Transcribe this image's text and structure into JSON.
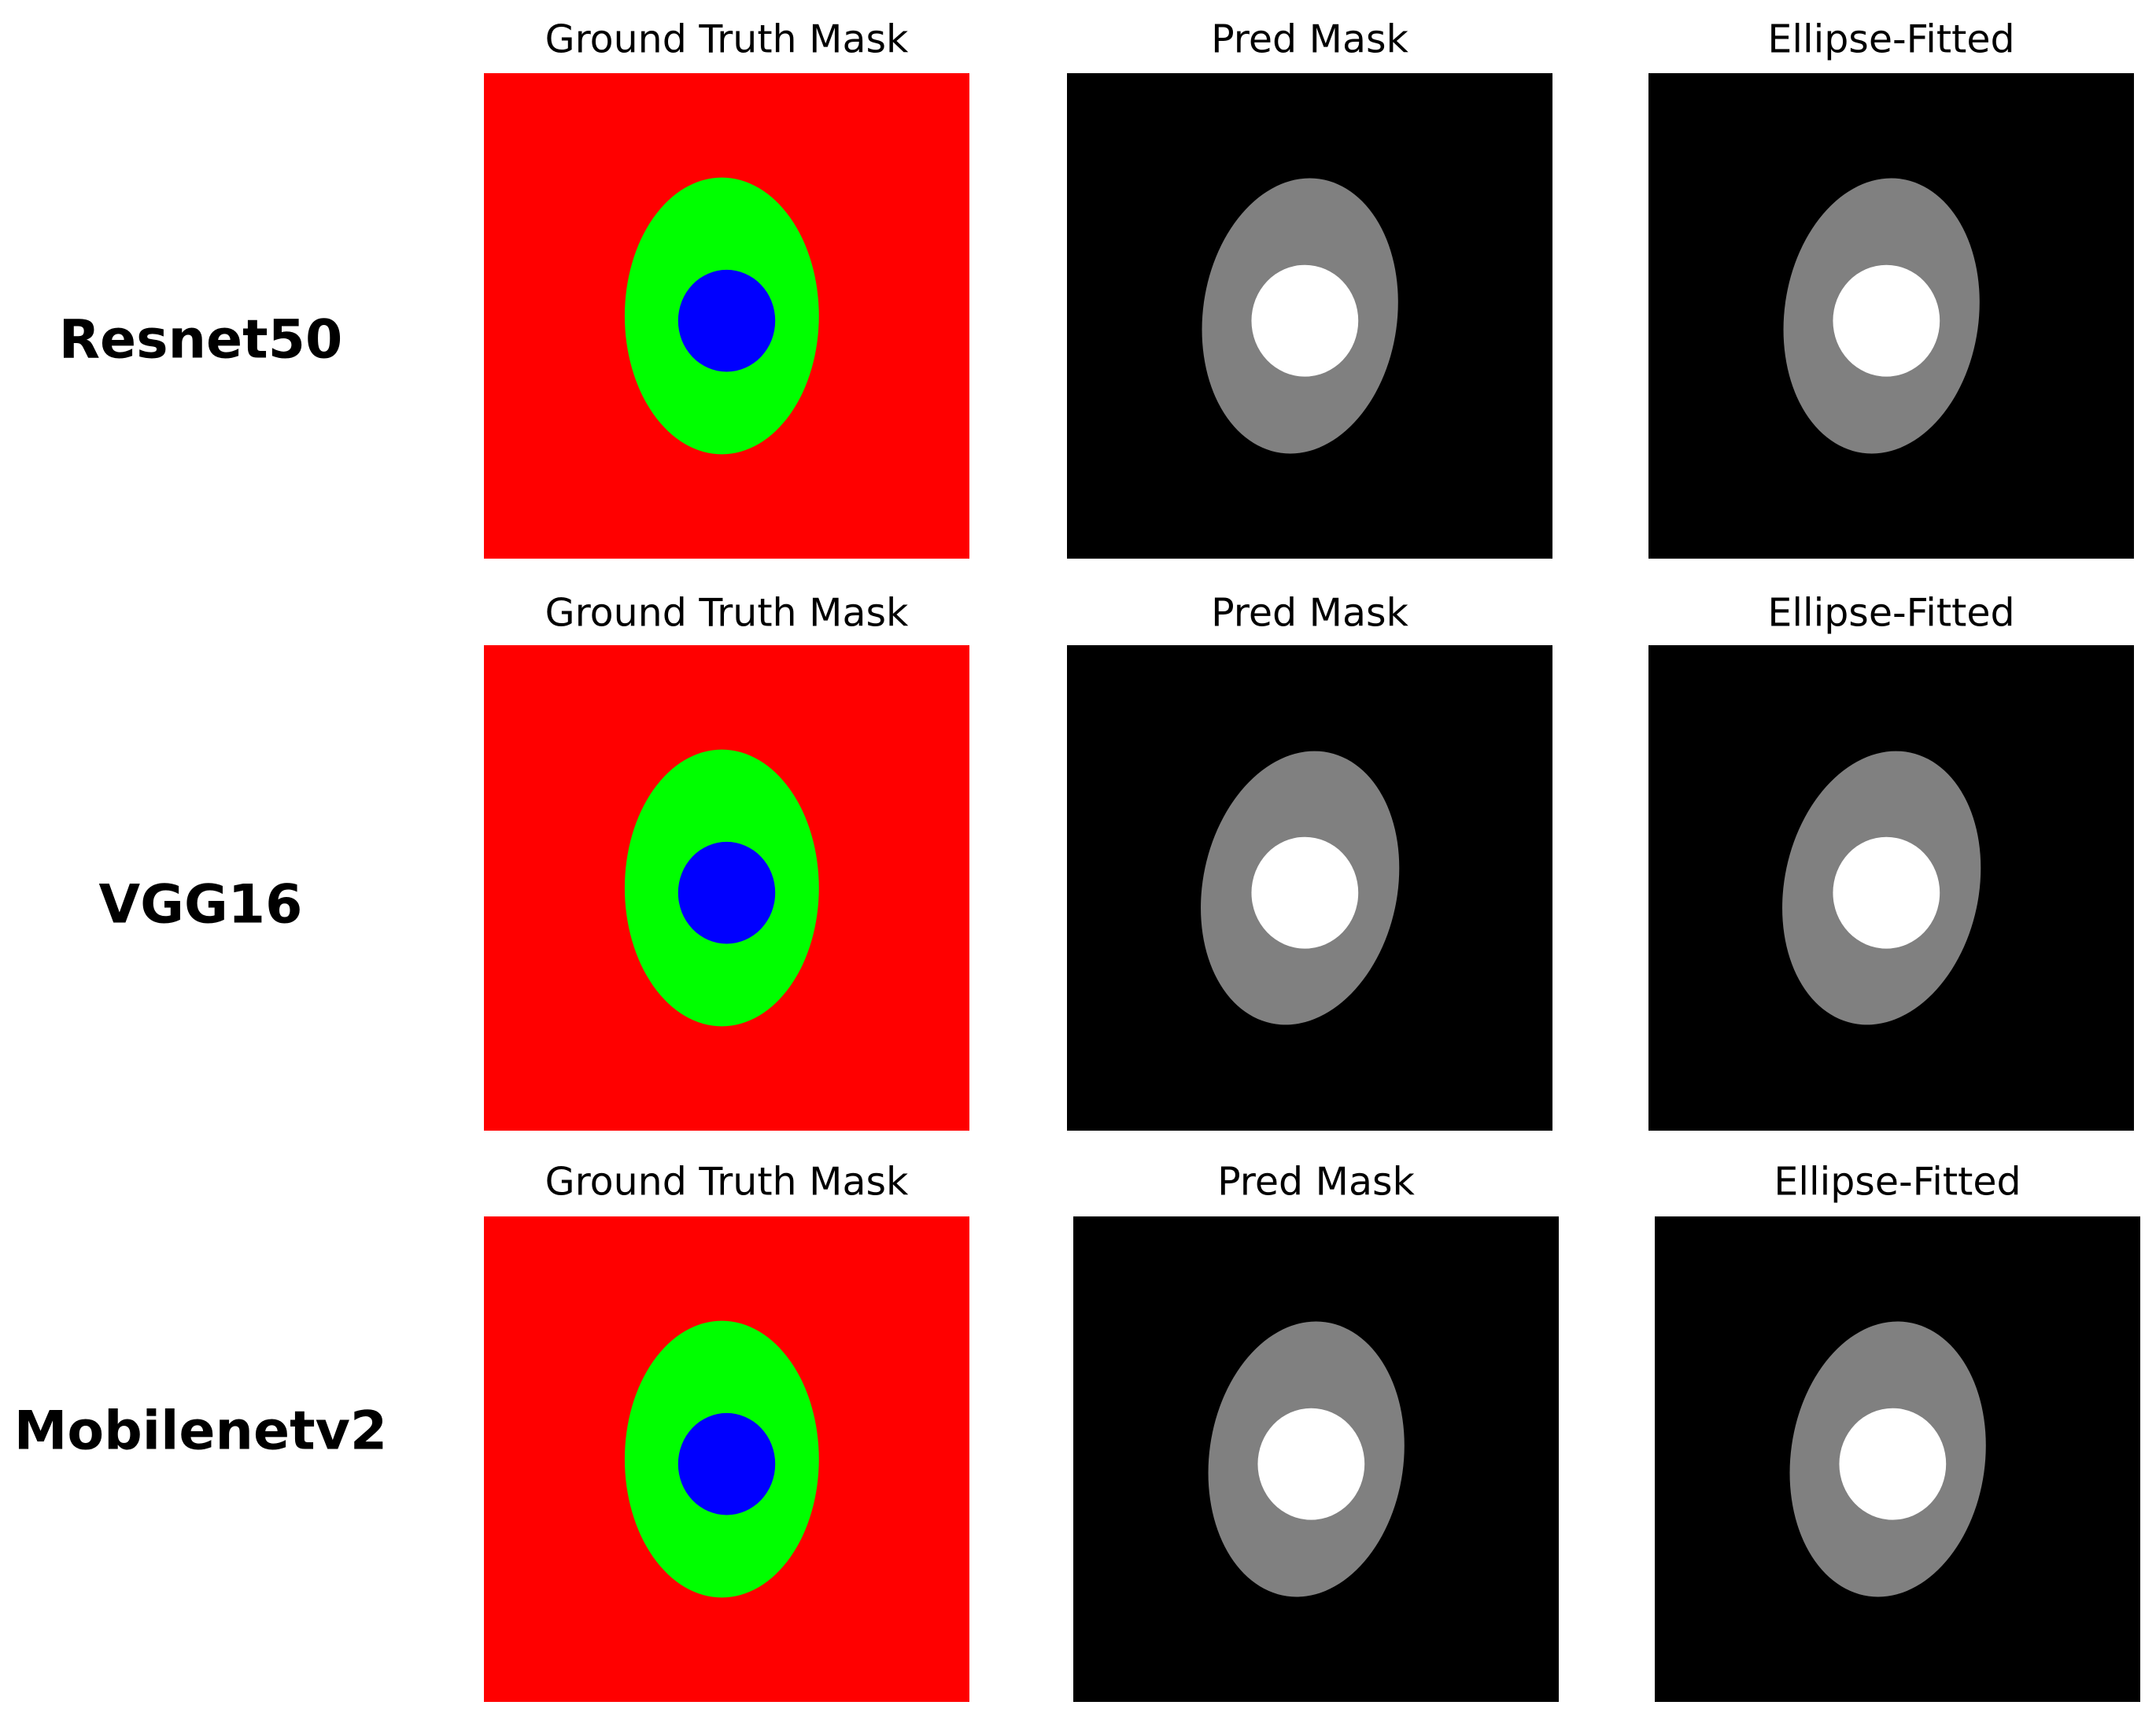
{
  "rows": [
    {
      "label": "Resnet50",
      "panels": [
        "Ground Truth Mask",
        "Pred Mask",
        "Ellipse-Fitted"
      ]
    },
    {
      "label": "VGG16",
      "panels": [
        "Ground Truth Mask",
        "Pred Mask",
        "Ellipse-Fitted"
      ]
    },
    {
      "label": "Mobilenetv2",
      "panels": [
        "Ground Truth Mask",
        "Pred Mask",
        "Ellipse-Fitted"
      ]
    }
  ]
}
